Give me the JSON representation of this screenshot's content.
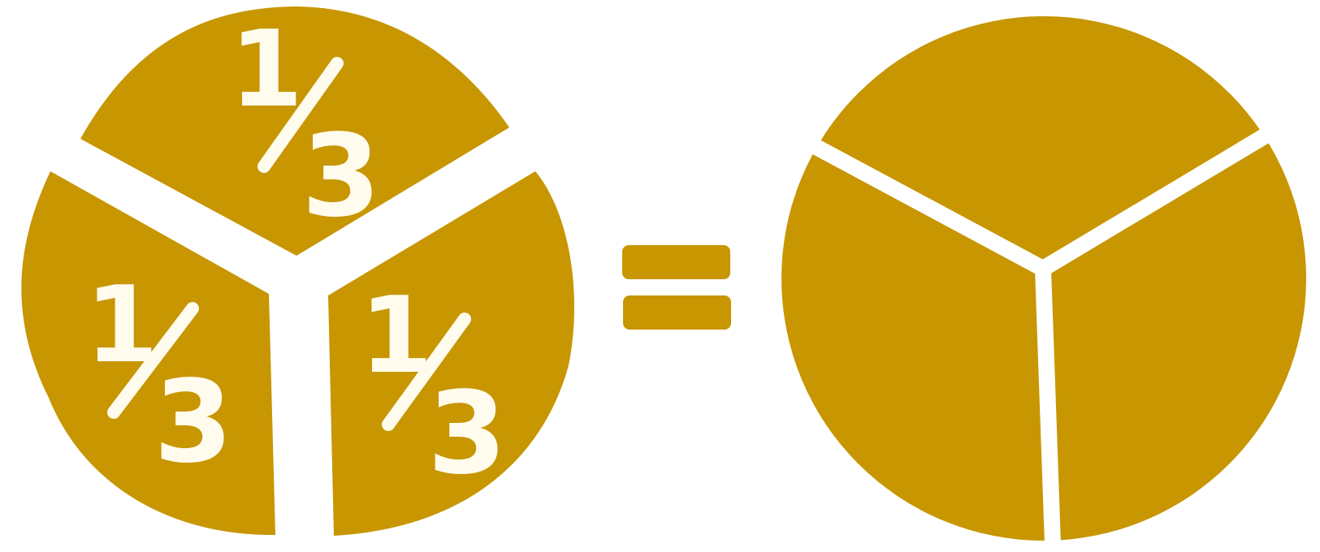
{
  "colors": {
    "background": "#ffffff",
    "piece_fill": "#c79600",
    "label_color": "#fffbed"
  },
  "left_pieces": [
    {
      "numerator": "1",
      "denominator": "3"
    },
    {
      "numerator": "1",
      "denominator": "3"
    },
    {
      "numerator": "1",
      "denominator": "3"
    }
  ],
  "operator": "=",
  "right_circle": {
    "divisions": 3
  }
}
